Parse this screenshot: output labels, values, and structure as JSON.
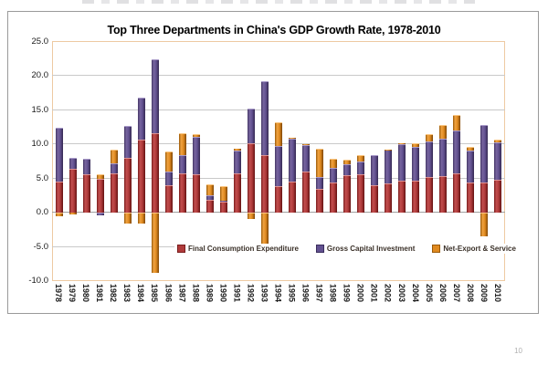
{
  "page": {
    "page_number": "10"
  },
  "axes": {
    "y_tick_labels": [
      "25.0",
      "20.0",
      "15.0",
      "10.0",
      "5.0",
      "0.0",
      "-5.0",
      "-10.0"
    ],
    "y_max": 25,
    "y_min": -10,
    "y_tick_interval": 5
  },
  "chart_data": {
    "type": "bar",
    "stacked": true,
    "title": "Top Three Departments in China's GDP Growth Rate, 1978-2010",
    "xlabel": "",
    "ylabel": "",
    "ylim": [
      -10,
      25
    ],
    "grid": true,
    "legend_position": "bottom-inside",
    "categories": [
      "1978",
      "1979",
      "1980",
      "1981",
      "1982",
      "1983",
      "1984",
      "1985",
      "1986",
      "1987",
      "1988",
      "1989",
      "1990",
      "1991",
      "1992",
      "1993",
      "1994",
      "1995",
      "1996",
      "1997",
      "1998",
      "1999",
      "2000",
      "2001",
      "2002",
      "2003",
      "2004",
      "2005",
      "2006",
      "2007",
      "2008",
      "2009",
      "2010"
    ],
    "series": [
      {
        "name": "Final Consumption Expenditure",
        "color": "#b03b3b",
        "values": [
          4.5,
          6.4,
          5.5,
          4.9,
          5.7,
          8.0,
          10.6,
          11.5,
          3.9,
          5.7,
          5.5,
          1.8,
          1.6,
          5.7,
          10.1,
          8.3,
          3.8,
          4.5,
          5.9,
          3.4,
          4.3,
          5.4,
          5.5,
          4.0,
          4.2,
          4.6,
          4.6,
          5.2,
          5.3,
          5.7,
          4.4,
          4.3,
          4.7
        ]
      },
      {
        "name": "Gross Capital Investment",
        "color": "#625190",
        "values": [
          7.8,
          1.5,
          2.3,
          -0.5,
          1.5,
          4.6,
          6.2,
          10.9,
          2.1,
          2.7,
          5.5,
          0.7,
          0.1,
          3.3,
          5.1,
          10.9,
          5.9,
          6.3,
          3.9,
          1.7,
          2.2,
          1.6,
          1.9,
          4.3,
          4.9,
          5.4,
          4.9,
          5.1,
          5.4,
          6.2,
          4.6,
          8.4,
          5.5
        ]
      },
      {
        "name": "Net-Export & Service",
        "color": "#e08a20",
        "values": [
          -0.6,
          -0.3,
          0.0,
          0.6,
          1.9,
          -1.7,
          -1.6,
          -8.8,
          2.9,
          3.2,
          0.4,
          1.6,
          2.1,
          0.3,
          -1.0,
          -5.4,
          3.4,
          0.1,
          0.2,
          4.2,
          1.3,
          0.7,
          1.0,
          0.0,
          0.1,
          0.1,
          0.6,
          1.1,
          2.0,
          2.3,
          0.6,
          -3.5,
          0.4
        ]
      }
    ]
  }
}
